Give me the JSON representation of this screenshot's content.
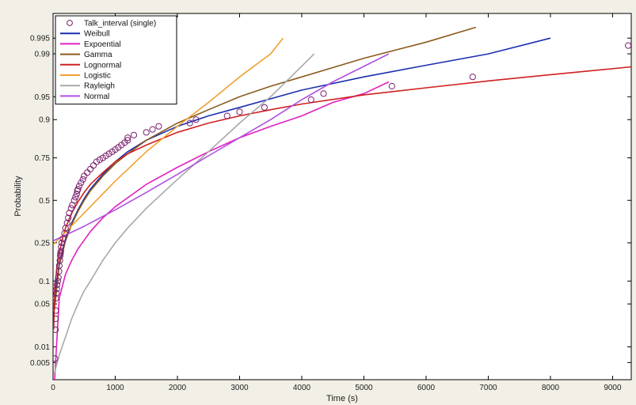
{
  "chart_data": {
    "type": "line",
    "title": "",
    "xlabel": "Time (s)",
    "ylabel": "Probability",
    "xlim": [
      0,
      9300
    ],
    "x_ticks": [
      0,
      1000,
      2000,
      3000,
      4000,
      5000,
      6000,
      7000,
      8000,
      9000
    ],
    "y_scale": "normal-probability",
    "y_ticks": [
      0.005,
      0.01,
      0.05,
      0.1,
      0.25,
      0.5,
      0.75,
      0.9,
      0.95,
      0.99,
      0.995
    ],
    "y_tick_labels": [
      "0.005",
      "0.01",
      "0.05",
      "0.1",
      "0.25",
      "0.5",
      "0.75",
      "0.9",
      "0.95",
      "0.99",
      "0.995"
    ],
    "grid": false,
    "legend_position": "top-left",
    "data_points": {
      "name": "Talk_interval (single)",
      "color": "#7a1f6e",
      "x": [
        30,
        40,
        40,
        45,
        45,
        55,
        60,
        65,
        75,
        85,
        95,
        100,
        110,
        115,
        120,
        125,
        130,
        140,
        160,
        185,
        200,
        225,
        245,
        260,
        290,
        310,
        340,
        360,
        380,
        390,
        400,
        420,
        450,
        480,
        500,
        550,
        600,
        650,
        700,
        750,
        800,
        850,
        900,
        950,
        1000,
        1050,
        1100,
        1150,
        1200,
        1200,
        1300,
        1500,
        1600,
        1700,
        2200,
        2300,
        2800,
        3000,
        3400,
        4150,
        4350,
        5450,
        6750,
        9250
      ],
      "y": [
        0.006,
        0.02,
        0.03,
        0.04,
        0.06,
        0.07,
        0.08,
        0.09,
        0.1,
        0.11,
        0.13,
        0.15,
        0.17,
        0.19,
        0.2,
        0.21,
        0.23,
        0.25,
        0.27,
        0.3,
        0.33,
        0.36,
        0.39,
        0.42,
        0.45,
        0.47,
        0.5,
        0.52,
        0.54,
        0.56,
        0.57,
        0.59,
        0.61,
        0.63,
        0.65,
        0.67,
        0.69,
        0.71,
        0.73,
        0.74,
        0.75,
        0.76,
        0.77,
        0.78,
        0.79,
        0.8,
        0.81,
        0.82,
        0.83,
        0.84,
        0.85,
        0.86,
        0.87,
        0.88,
        0.89,
        0.9,
        0.91,
        0.92,
        0.93,
        0.945,
        0.955,
        0.965,
        0.975,
        0.993
      ]
    },
    "series": [
      {
        "name": "Weibull",
        "color": "#1a2fb0",
        "x": [
          20,
          100,
          200,
          300,
          400,
          500,
          600,
          800,
          1000,
          1200,
          1500,
          2000,
          2500,
          3000,
          4000,
          5000,
          6000,
          7000,
          8000
        ],
        "y": [
          0.05,
          0.16,
          0.27,
          0.36,
          0.44,
          0.51,
          0.57,
          0.66,
          0.73,
          0.78,
          0.83,
          0.88,
          0.91,
          0.93,
          0.96,
          0.975,
          0.984,
          0.99,
          0.995
        ]
      },
      {
        "name": "Expoential",
        "color": "#e020c0",
        "x": [
          0,
          100,
          200,
          300,
          400,
          600,
          800,
          1000,
          1500,
          2000,
          2500,
          3000,
          3500,
          4000,
          4500,
          5000,
          5400
        ],
        "y": [
          0.0,
          0.06,
          0.12,
          0.17,
          0.22,
          0.31,
          0.39,
          0.46,
          0.6,
          0.7,
          0.78,
          0.84,
          0.88,
          0.91,
          0.94,
          0.955,
          0.97
        ]
      },
      {
        "name": "Gamma",
        "color": "#8a5a1e",
        "x": [
          20,
          100,
          200,
          300,
          400,
          500,
          600,
          800,
          1000,
          1200,
          1500,
          2000,
          2500,
          3000,
          3500,
          4000,
          5000,
          6000,
          6800
        ],
        "y": [
          0.04,
          0.15,
          0.26,
          0.35,
          0.43,
          0.5,
          0.56,
          0.65,
          0.72,
          0.77,
          0.83,
          0.89,
          0.925,
          0.95,
          0.965,
          0.975,
          0.988,
          0.994,
          0.997
        ]
      },
      {
        "name": "Lognormal",
        "color": "#d02020",
        "x": [
          10,
          20,
          40,
          60,
          100,
          150,
          200,
          300,
          400,
          500,
          600,
          800,
          1000,
          1200,
          1500,
          2000,
          2500,
          3000,
          3500,
          4000,
          5000,
          6000,
          7000,
          8000,
          9300
        ],
        "y": [
          0.02,
          0.05,
          0.1,
          0.14,
          0.2,
          0.27,
          0.33,
          0.42,
          0.49,
          0.55,
          0.6,
          0.67,
          0.73,
          0.77,
          0.81,
          0.86,
          0.89,
          0.91,
          0.925,
          0.937,
          0.953,
          0.963,
          0.971,
          0.977,
          0.983
        ]
      },
      {
        "name": "Logistic",
        "color": "#f0a030",
        "x": [
          0,
          500,
          1000,
          1500,
          2000,
          2500,
          3000,
          3500,
          3700
        ],
        "y": [
          0.24,
          0.42,
          0.62,
          0.78,
          0.88,
          0.94,
          0.975,
          0.99,
          0.995
        ]
      },
      {
        "name": "Rayleigh",
        "color": "#a8a8a8",
        "x": [
          20,
          100,
          200,
          300,
          400,
          500,
          600,
          800,
          1000,
          1200,
          1500,
          2000,
          2500,
          3000,
          3500,
          4200
        ],
        "y": [
          0.003,
          0.007,
          0.015,
          0.03,
          0.05,
          0.075,
          0.1,
          0.17,
          0.25,
          0.33,
          0.45,
          0.63,
          0.78,
          0.89,
          0.95,
          0.99
        ]
      },
      {
        "name": "Normal",
        "color": "#b050e0",
        "x": [
          0,
          500,
          1000,
          1500,
          2000,
          2500,
          3000,
          3500,
          4000,
          4500,
          5400
        ],
        "y": [
          0.26,
          0.34,
          0.44,
          0.55,
          0.66,
          0.76,
          0.84,
          0.9,
          0.945,
          0.97,
          0.99
        ]
      }
    ]
  }
}
